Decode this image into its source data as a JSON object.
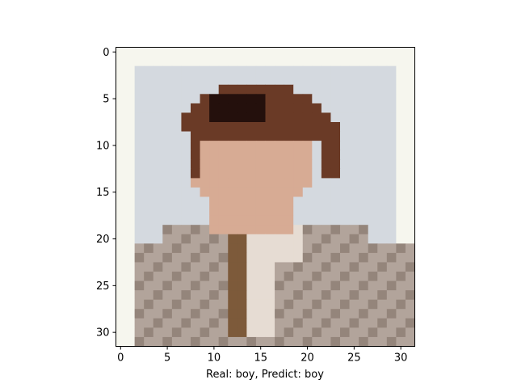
{
  "figure": {
    "xlabel": "Real: boy, Predict: boy",
    "x_ticks": [
      "0",
      "5",
      "10",
      "15",
      "20",
      "25",
      "30"
    ],
    "y_ticks": [
      "0",
      "5",
      "10",
      "15",
      "20",
      "25",
      "30"
    ],
    "image_grid_size": 32,
    "image_subject": "pixelated portrait of a boy with brown hair wearing a beige jacket",
    "colors": {
      "background": "#f6f6ee",
      "sky": "#d4d9df",
      "hair": "#6a3a26",
      "hair_dark": "#24100c",
      "skin": "#d7ab94",
      "jacket": "#b2a49b",
      "jacket_dark": "#94857b",
      "shirt": "#e6dcd3",
      "tie": "#7d5a3a"
    }
  }
}
